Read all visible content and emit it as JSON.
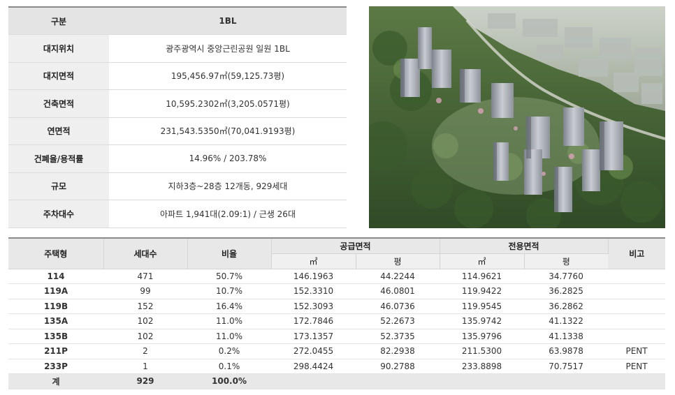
{
  "info": {
    "header": {
      "label": "구분",
      "value": "1BL"
    },
    "rows": [
      {
        "label": "대지위치",
        "value": "광주광역시 중앙근린공원 일원 1BL"
      },
      {
        "label": "대지면적",
        "value": "195,456.97㎡(59,125.73평)"
      },
      {
        "label": "건축면적",
        "value": "10,595.2302㎡(3,205.0571평)"
      },
      {
        "label": "연면적",
        "value": "231,543.5350㎡(70,041.9193평)"
      },
      {
        "label": "건폐율/용적률",
        "value": "14.96% / 203.78%"
      },
      {
        "label": "규모",
        "value": "지하3층~28층 12개동, 929세대"
      },
      {
        "label": "주차대수",
        "value": "아파트 1,941대(2.09:1) / 근생 26대"
      }
    ]
  },
  "units": {
    "headers": {
      "type": "주택형",
      "households": "세대수",
      "ratio": "비율",
      "supply": "공급면적",
      "exclusive": "전용면적",
      "note": "비고",
      "sqm": "㎡",
      "pyeong": "평"
    },
    "rows": [
      [
        "114",
        "471",
        "50.7%",
        "146.1963",
        "44.2244",
        "114.9621",
        "34.7760",
        ""
      ],
      [
        "119A",
        "99",
        "10.7%",
        "152.3310",
        "46.0801",
        "119.9422",
        "36.2825",
        ""
      ],
      [
        "119B",
        "152",
        "16.4%",
        "152.3093",
        "46.0736",
        "119.9545",
        "36.2862",
        ""
      ],
      [
        "135A",
        "102",
        "11.0%",
        "172.7846",
        "52.2673",
        "135.9742",
        "41.1322",
        ""
      ],
      [
        "135B",
        "102",
        "11.0%",
        "173.1357",
        "52.3735",
        "135.9796",
        "41.1338",
        ""
      ],
      [
        "211P",
        "2",
        "0.2%",
        "272.0455",
        "82.2938",
        "211.5300",
        "63.9878",
        "PENT"
      ],
      [
        "233P",
        "1",
        "0.1%",
        "298.4424",
        "90.2788",
        "233.8898",
        "70.7517",
        "PENT"
      ]
    ],
    "total": {
      "label": "계",
      "households": "929",
      "ratio": "100.0%"
    }
  },
  "colors": {
    "header_bg": "#e4e4e4",
    "label_bg": "#efefef",
    "forest": "#3f5a33",
    "building": "#c9ccd2"
  }
}
